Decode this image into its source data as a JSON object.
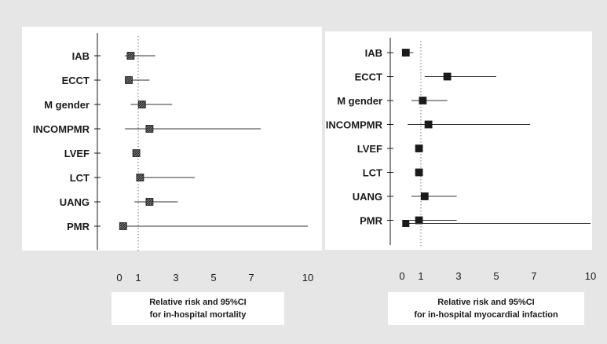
{
  "colors": {
    "page_background": "#e6e6e6",
    "panel_background": "#ffffff",
    "ink": "#1a1a1a"
  },
  "chart_data": [
    {
      "type": "forest",
      "caption_lines": [
        "Relative risk and 95%CI",
        "for in-hospital mortality"
      ],
      "categories": [
        "IAB",
        "ECCT",
        "M gender",
        "INCOMPMR",
        "LVEF",
        "LCT",
        "UANG",
        "PMR"
      ],
      "estimates": [
        0.6,
        0.5,
        1.2,
        1.6,
        0.9,
        1.1,
        1.6,
        0.2
      ],
      "ci_low": [
        0.3,
        0.3,
        0.6,
        0.3,
        0.8,
        0.9,
        0.8,
        0.1
      ],
      "ci_high": [
        1.9,
        1.6,
        2.8,
        7.5,
        1.0,
        4.0,
        3.1,
        10.0
      ],
      "marker_style": "hatched",
      "x_ticks": [
        0,
        1,
        3,
        5,
        7,
        10
      ],
      "xlim": [
        0,
        10
      ],
      "reference_line_x": 1
    },
    {
      "type": "forest",
      "caption_lines": [
        "Relative risk and 95%CI",
        "for in-hospital myocardial infaction"
      ],
      "categories": [
        "IAB",
        "ECCT",
        "M gender",
        "INCOMPMR",
        "LVEF",
        "LCT",
        "UANG",
        "PMR"
      ],
      "estimates": [
        0.2,
        2.4,
        1.1,
        1.4,
        0.9,
        0.9,
        1.2,
        0.9
      ],
      "ci_low": [
        0.1,
        1.2,
        0.5,
        0.3,
        0.8,
        0.8,
        0.5,
        0.4
      ],
      "ci_high": [
        0.6,
        5.0,
        2.4,
        6.8,
        1.0,
        1.0,
        2.9,
        2.9
      ],
      "marker_style": "solid",
      "extra_marks": [
        {
          "category": "PMR",
          "estimate": 0.2,
          "ci_low": 0.1,
          "ci_high": 10.0
        }
      ],
      "x_ticks": [
        0,
        1,
        3,
        5,
        7,
        10
      ],
      "xlim": [
        0,
        10
      ],
      "reference_line_x": 1
    }
  ]
}
